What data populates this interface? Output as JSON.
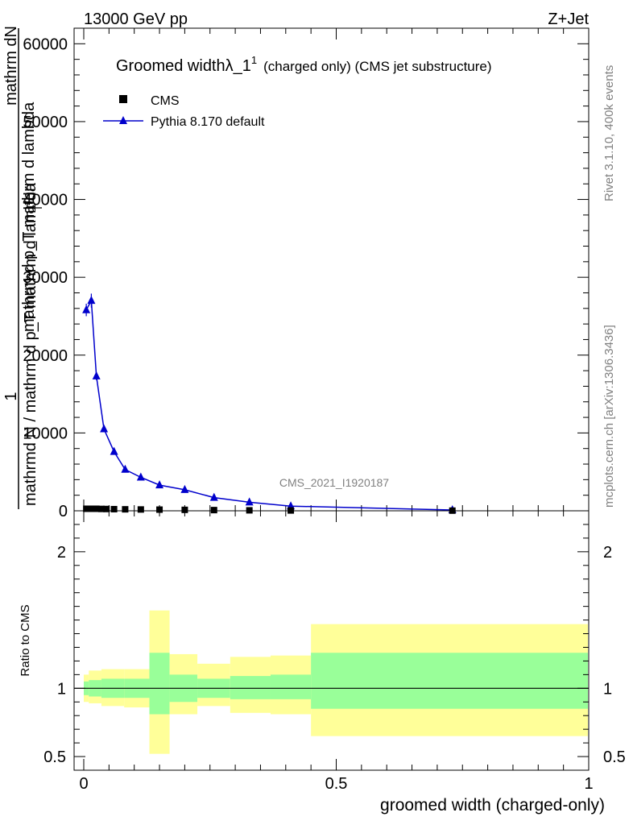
{
  "header": {
    "energy_label": "13000 GeV pp",
    "process_label": "Z+Jet"
  },
  "side_text": {
    "rivet": "Rivet 3.1.10,  400k events",
    "mcplots": "mcplots.cern.ch [arXiv:1306.3436]"
  },
  "chart_data": [
    {
      "type": "line",
      "title": "Groomed widthλ_1",
      "title_superscript": "1",
      "title_suffix": "(charged only) (CMS jet substructure)",
      "watermark": "CMS_2021_I1920187",
      "ylabel_numerator": "mathrm dN",
      "ylabel_numerator_2": "1",
      "ylabel_denominator": "mathrmd N / mathrm d p_T mathrm d lambda",
      "ylabel_denominator_2": "mathrm d p_T mathrm d lambda",
      "ylabel_subscript": "T",
      "xlim": [
        0,
        1
      ],
      "ylim": [
        0,
        62000
      ],
      "y_ticks": [
        0,
        10000,
        20000,
        30000,
        40000,
        50000,
        60000
      ],
      "y_tick_labels": [
        "0",
        "10000",
        "20000",
        "30000",
        "40000",
        "50000",
        "60000"
      ],
      "legend_position": "top-left",
      "series": [
        {
          "name": "CMS",
          "color": "#000000",
          "marker": "square",
          "x": [
            0.005,
            0.015,
            0.025,
            0.035,
            0.045,
            0.06,
            0.082,
            0.113,
            0.15,
            0.2,
            0.258,
            0.328,
            0.41,
            0.73
          ],
          "y": [
            260,
            260,
            260,
            240,
            230,
            210,
            190,
            170,
            150,
            120,
            90,
            60,
            40,
            20
          ]
        },
        {
          "name": "Pythia 8.170 default",
          "color": "#0000cc",
          "marker": "triangle",
          "x": [
            0.005,
            0.015,
            0.025,
            0.04,
            0.06,
            0.082,
            0.113,
            0.15,
            0.2,
            0.258,
            0.328,
            0.41,
            0.73
          ],
          "y": [
            25800,
            27000,
            17300,
            10500,
            7600,
            5300,
            4300,
            3300,
            2700,
            1700,
            1100,
            600,
            100
          ],
          "yerr": [
            800,
            900,
            500,
            300,
            250,
            200,
            150,
            120,
            100,
            80,
            60,
            40,
            20
          ]
        }
      ]
    },
    {
      "type": "area",
      "ylabel": "Ratio to CMS",
      "xlabel": "groomed width (charged-only)",
      "xlim": [
        0,
        1
      ],
      "ylim": [
        0.4,
        2.3
      ],
      "y_ticks": [
        0.5,
        1,
        2
      ],
      "y_tick_labels": [
        "0.5",
        "1",
        "2"
      ],
      "x_ticks": [
        0,
        0.5,
        1
      ],
      "x_tick_labels": [
        "0",
        "0.5",
        "1"
      ],
      "reference_line": 1,
      "bands": [
        {
          "x0": 0.0,
          "x1": 0.01,
          "stat_lo": 0.95,
          "stat_hi": 1.05,
          "tot_lo": 0.9,
          "tot_hi": 1.1
        },
        {
          "x0": 0.01,
          "x1": 0.035,
          "stat_lo": 0.94,
          "stat_hi": 1.06,
          "tot_lo": 0.89,
          "tot_hi": 1.13
        },
        {
          "x0": 0.035,
          "x1": 0.08,
          "stat_lo": 0.93,
          "stat_hi": 1.07,
          "tot_lo": 0.87,
          "tot_hi": 1.14
        },
        {
          "x0": 0.08,
          "x1": 0.13,
          "stat_lo": 0.93,
          "stat_hi": 1.07,
          "tot_lo": 0.86,
          "tot_hi": 1.14
        },
        {
          "x0": 0.13,
          "x1": 0.17,
          "stat_lo": 0.81,
          "stat_hi": 1.26,
          "tot_lo": 0.52,
          "tot_hi": 1.57
        },
        {
          "x0": 0.17,
          "x1": 0.225,
          "stat_lo": 0.9,
          "stat_hi": 1.1,
          "tot_lo": 0.81,
          "tot_hi": 1.25
        },
        {
          "x0": 0.225,
          "x1": 0.29,
          "stat_lo": 0.93,
          "stat_hi": 1.07,
          "tot_lo": 0.87,
          "tot_hi": 1.18
        },
        {
          "x0": 0.29,
          "x1": 0.37,
          "stat_lo": 0.92,
          "stat_hi": 1.09,
          "tot_lo": 0.82,
          "tot_hi": 1.23
        },
        {
          "x0": 0.37,
          "x1": 0.45,
          "stat_lo": 0.92,
          "stat_hi": 1.1,
          "tot_lo": 0.81,
          "tot_hi": 1.24
        },
        {
          "x0": 0.45,
          "x1": 1.0,
          "stat_lo": 0.85,
          "stat_hi": 1.26,
          "tot_lo": 0.65,
          "tot_hi": 1.47
        }
      ],
      "colors": {
        "stat": "#99ff99",
        "total": "#ffff99"
      }
    }
  ]
}
